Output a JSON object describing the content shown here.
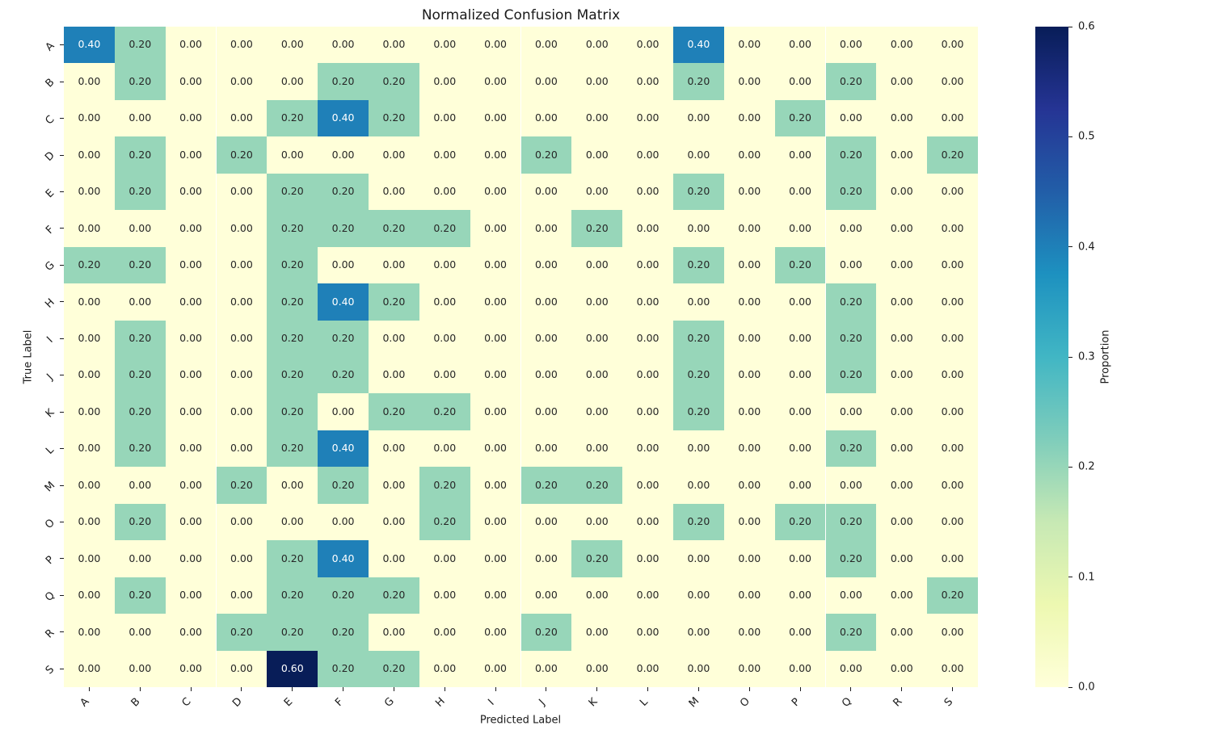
{
  "chart_data": {
    "type": "heatmap",
    "title": "Normalized Confusion Matrix",
    "xlabel": "Predicted Label",
    "ylabel": "True Label",
    "x_labels": [
      "A",
      "B",
      "C",
      "D",
      "E",
      "F",
      "G",
      "H",
      "I",
      "J",
      "K",
      "L",
      "M",
      "O",
      "P",
      "Q",
      "R",
      "S"
    ],
    "y_labels": [
      "A",
      "B",
      "C",
      "D",
      "E",
      "F",
      "G",
      "H",
      "I",
      "J",
      "K",
      "L",
      "M",
      "O",
      "P",
      "Q",
      "R",
      "S"
    ],
    "matrix": [
      [
        0.4,
        0.2,
        0.0,
        0.0,
        0.0,
        0.0,
        0.0,
        0.0,
        0.0,
        0.0,
        0.0,
        0.0,
        0.4,
        0.0,
        0.0,
        0.0,
        0.0,
        0.0
      ],
      [
        0.0,
        0.2,
        0.0,
        0.0,
        0.0,
        0.2,
        0.2,
        0.0,
        0.0,
        0.0,
        0.0,
        0.0,
        0.2,
        0.0,
        0.0,
        0.2,
        0.0,
        0.0
      ],
      [
        0.0,
        0.0,
        0.0,
        0.0,
        0.2,
        0.4,
        0.2,
        0.0,
        0.0,
        0.0,
        0.0,
        0.0,
        0.0,
        0.0,
        0.2,
        0.0,
        0.0,
        0.0
      ],
      [
        0.0,
        0.2,
        0.0,
        0.2,
        0.0,
        0.0,
        0.0,
        0.0,
        0.0,
        0.2,
        0.0,
        0.0,
        0.0,
        0.0,
        0.0,
        0.2,
        0.0,
        0.2
      ],
      [
        0.0,
        0.2,
        0.0,
        0.0,
        0.2,
        0.2,
        0.0,
        0.0,
        0.0,
        0.0,
        0.0,
        0.0,
        0.2,
        0.0,
        0.0,
        0.2,
        0.0,
        0.0
      ],
      [
        0.0,
        0.0,
        0.0,
        0.0,
        0.2,
        0.2,
        0.2,
        0.2,
        0.0,
        0.0,
        0.2,
        0.0,
        0.0,
        0.0,
        0.0,
        0.0,
        0.0,
        0.0
      ],
      [
        0.2,
        0.2,
        0.0,
        0.0,
        0.2,
        0.0,
        0.0,
        0.0,
        0.0,
        0.0,
        0.0,
        0.0,
        0.2,
        0.0,
        0.2,
        0.0,
        0.0,
        0.0
      ],
      [
        0.0,
        0.0,
        0.0,
        0.0,
        0.2,
        0.4,
        0.2,
        0.0,
        0.0,
        0.0,
        0.0,
        0.0,
        0.0,
        0.0,
        0.0,
        0.2,
        0.0,
        0.0
      ],
      [
        0.0,
        0.2,
        0.0,
        0.0,
        0.2,
        0.2,
        0.0,
        0.0,
        0.0,
        0.0,
        0.0,
        0.0,
        0.2,
        0.0,
        0.0,
        0.2,
        0.0,
        0.0
      ],
      [
        0.0,
        0.2,
        0.0,
        0.0,
        0.2,
        0.2,
        0.0,
        0.0,
        0.0,
        0.0,
        0.0,
        0.0,
        0.2,
        0.0,
        0.0,
        0.2,
        0.0,
        0.0
      ],
      [
        0.0,
        0.2,
        0.0,
        0.0,
        0.2,
        0.0,
        0.2,
        0.2,
        0.0,
        0.0,
        0.0,
        0.0,
        0.2,
        0.0,
        0.0,
        0.0,
        0.0,
        0.0
      ],
      [
        0.0,
        0.2,
        0.0,
        0.0,
        0.2,
        0.4,
        0.0,
        0.0,
        0.0,
        0.0,
        0.0,
        0.0,
        0.0,
        0.0,
        0.0,
        0.2,
        0.0,
        0.0
      ],
      [
        0.0,
        0.0,
        0.0,
        0.2,
        0.0,
        0.2,
        0.0,
        0.2,
        0.0,
        0.2,
        0.2,
        0.0,
        0.0,
        0.0,
        0.0,
        0.0,
        0.0,
        0.0
      ],
      [
        0.0,
        0.2,
        0.0,
        0.0,
        0.0,
        0.0,
        0.0,
        0.2,
        0.0,
        0.0,
        0.0,
        0.0,
        0.2,
        0.0,
        0.2,
        0.2,
        0.0,
        0.0
      ],
      [
        0.0,
        0.0,
        0.0,
        0.0,
        0.2,
        0.4,
        0.0,
        0.0,
        0.0,
        0.0,
        0.2,
        0.0,
        0.0,
        0.0,
        0.0,
        0.2,
        0.0,
        0.0
      ],
      [
        0.0,
        0.2,
        0.0,
        0.0,
        0.2,
        0.2,
        0.2,
        0.0,
        0.0,
        0.0,
        0.0,
        0.0,
        0.0,
        0.0,
        0.0,
        0.0,
        0.0,
        0.2
      ],
      [
        0.0,
        0.0,
        0.0,
        0.2,
        0.2,
        0.2,
        0.0,
        0.0,
        0.0,
        0.2,
        0.0,
        0.0,
        0.0,
        0.0,
        0.0,
        0.2,
        0.0,
        0.0
      ],
      [
        0.0,
        0.0,
        0.0,
        0.0,
        0.6,
        0.2,
        0.2,
        0.0,
        0.0,
        0.0,
        0.0,
        0.0,
        0.0,
        0.0,
        0.0,
        0.0,
        0.0,
        0.0
      ]
    ],
    "vmin": 0.0,
    "vmax": 0.6,
    "value_format_decimals": 2,
    "grid": false,
    "colorbar": {
      "label": "Proportion",
      "ticks": [
        "0.0",
        "0.1",
        "0.2",
        "0.3",
        "0.4",
        "0.5",
        "0.6"
      ],
      "position": "right"
    },
    "colormap_name": "YlGnBu",
    "colormap_stops": [
      "#ffffd9",
      "#edf8b1",
      "#c7e9b4",
      "#7fcdbb",
      "#41b6c4",
      "#1d91c0",
      "#225ea8",
      "#253494",
      "#081d58"
    ],
    "annot_color_dark_cells": "#ffffff",
    "annot_color_light_cells": "#262626"
  }
}
